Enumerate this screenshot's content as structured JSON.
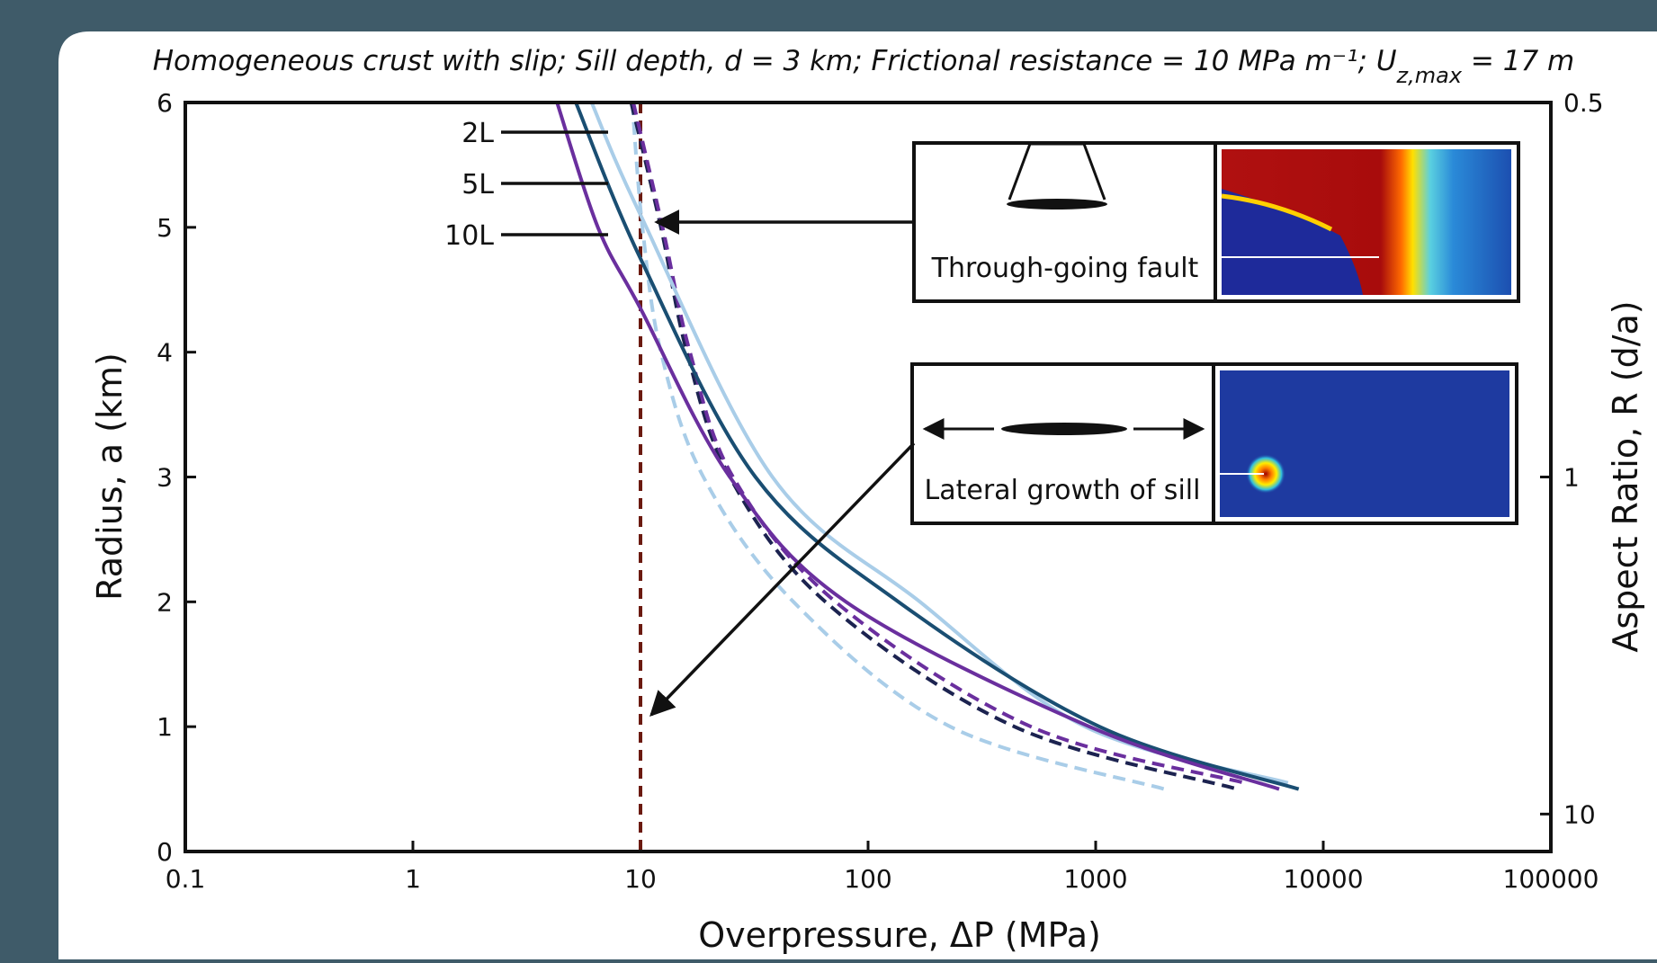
{
  "chart_data": {
    "type": "line",
    "title": {
      "main": "Homogeneous crust with slip; Sill depth, d = 3 km; Frictional resistance = 10 MPa m⁻¹; U",
      "sub": "z,max",
      "end": " = 17 m"
    },
    "x_label": "Overpressure, ΔP (MPa)",
    "y_label": "Radius, a (km)",
    "y2_label": "Aspect Ratio, R (d/a)",
    "x_scale": "log",
    "xlim": [
      0.1,
      100000
    ],
    "xticks": [
      0.1,
      1,
      10,
      100,
      1000,
      10000,
      100000
    ],
    "ylim": [
      0,
      6
    ],
    "yticks": [
      0,
      1,
      2,
      3,
      4,
      5,
      6
    ],
    "sill_depth_km": 3,
    "y2ticks": [
      0.5,
      1,
      10
    ],
    "reference_x": 10,
    "reference_color": "#6b1a10",
    "series": [
      {
        "name": "2L",
        "color": "#a9cde8",
        "style": "solid",
        "x": [
          6.1,
          10,
          38,
          169,
          900,
          7000
        ],
        "values": [
          6,
          5.1,
          3,
          2,
          1,
          0.55
        ]
      },
      {
        "name": "5L",
        "color": "#1a4e72",
        "style": "solid",
        "x": [
          5.2,
          10,
          32,
          136,
          1040,
          7800
        ],
        "values": [
          6,
          4.75,
          3,
          2,
          1,
          0.5
        ]
      },
      {
        "name": "10L",
        "color": "#6a2f9e",
        "style": "solid",
        "x": [
          4.3,
          6.5,
          10,
          24.7,
          80,
          940,
          6400
        ],
        "values": [
          6,
          5,
          4.35,
          3,
          2,
          1,
          0.5
        ]
      },
      {
        "color": "#a9cde8",
        "style": "dashed",
        "x": [
          9.2,
          10.2,
          12.3,
          18.9,
          47,
          230,
          2000
        ],
        "values": [
          6,
          5,
          4,
          3,
          2,
          1,
          0.5
        ]
      },
      {
        "color": "#1c2350",
        "style": "dashed",
        "x": [
          9.1,
          12.3,
          16,
          24.7,
          65,
          440,
          4200
        ],
        "values": [
          6,
          5,
          4,
          3,
          2,
          1,
          0.5
        ]
      },
      {
        "color": "#6a2f9e",
        "style": "dashed",
        "x": [
          9.3,
          12.5,
          16.5,
          25.5,
          72,
          520,
          4500
        ],
        "values": [
          6,
          5,
          4,
          3,
          2,
          1,
          0.55
        ]
      }
    ],
    "annotations": [
      "Through-going fault",
      "Lateral growth of sill"
    ]
  }
}
